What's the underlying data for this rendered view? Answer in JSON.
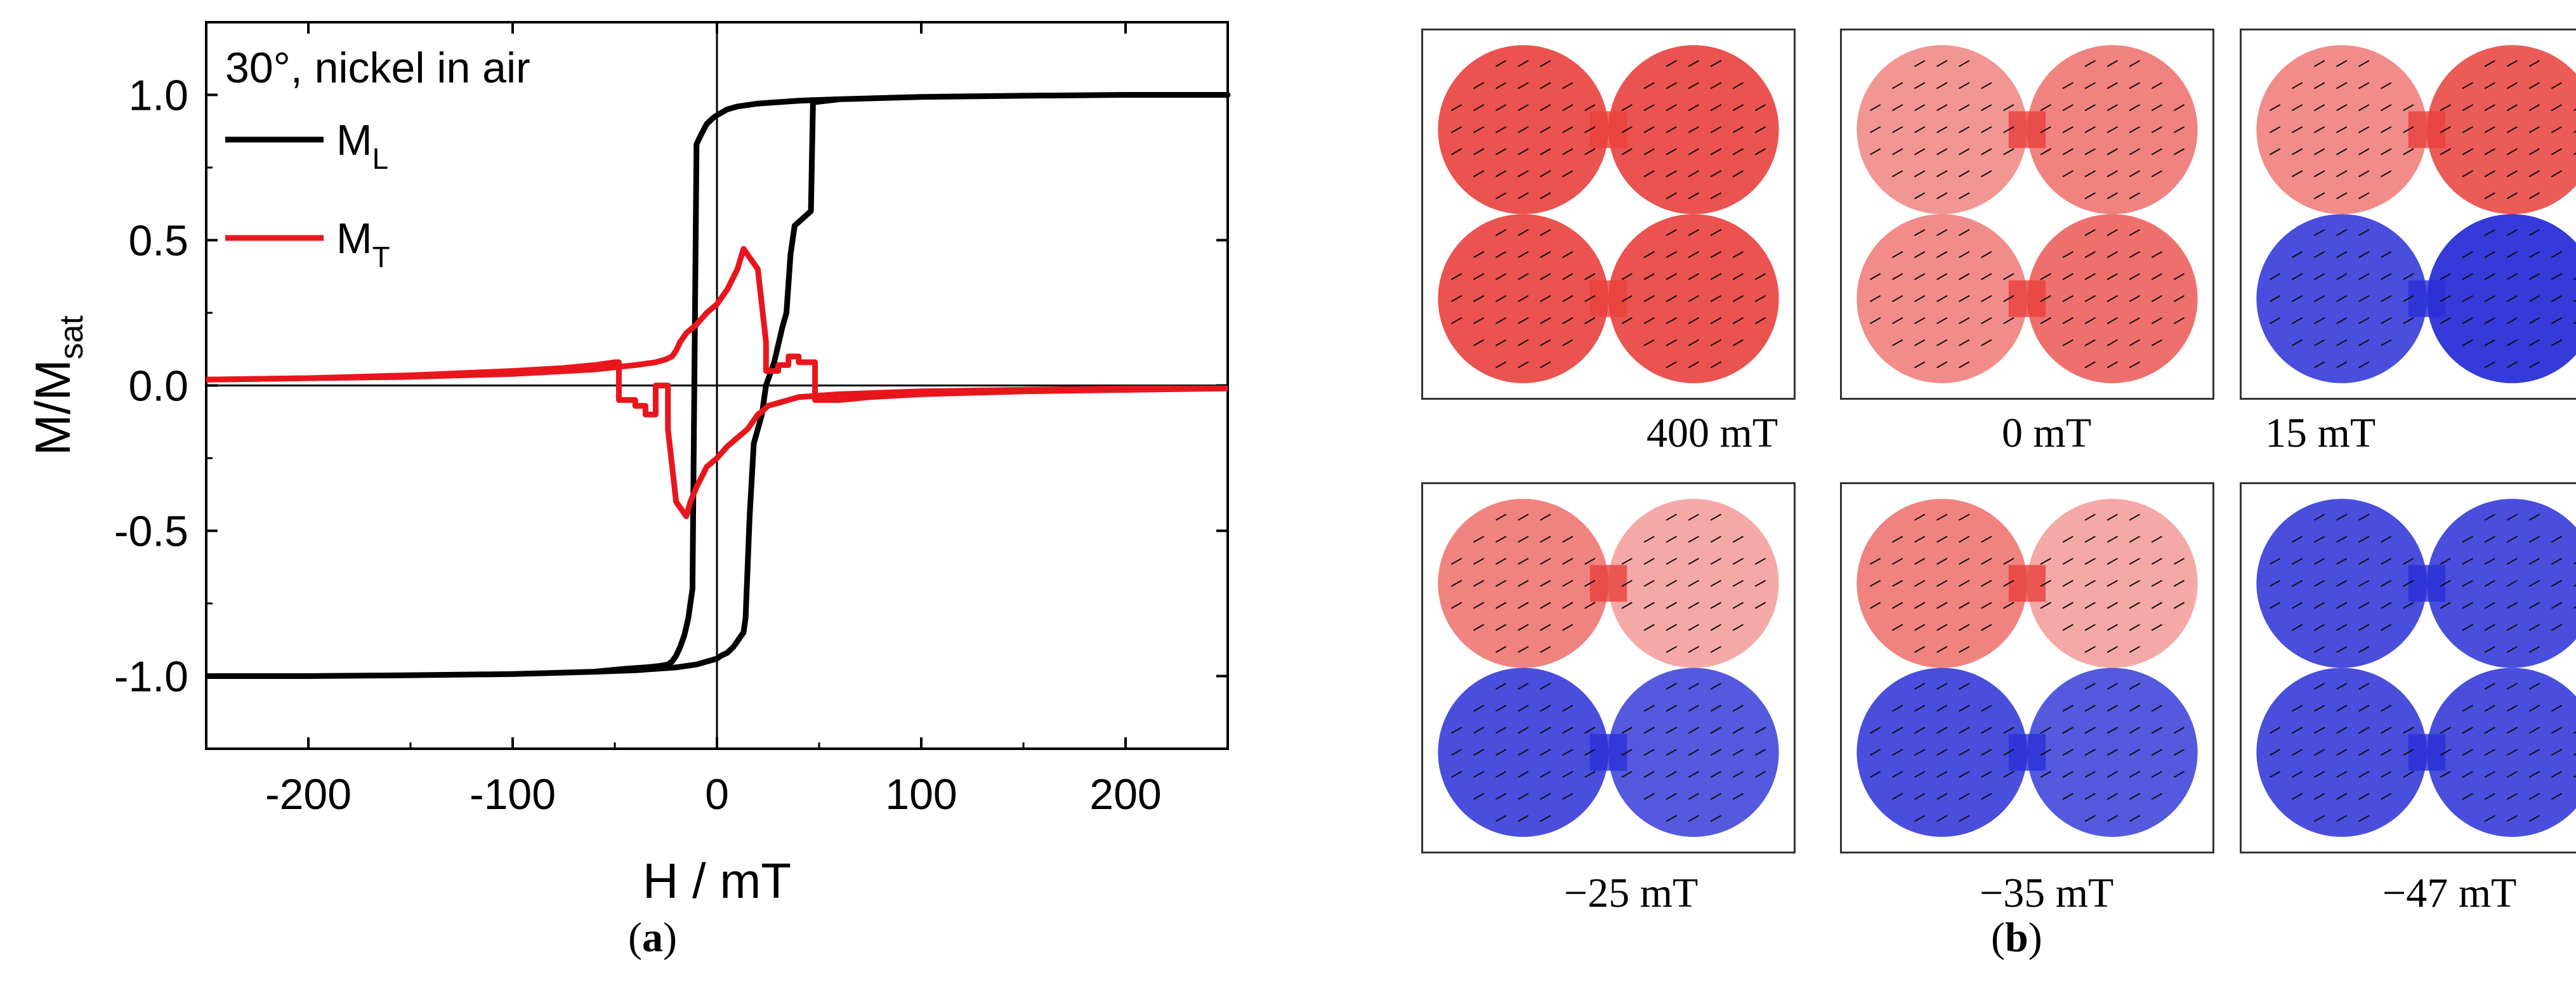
{
  "colors": {
    "ml_line": "#000000",
    "mt_line": "#e8161c",
    "red_domain": "#e8403c",
    "blue_domain": "#2a2fd6",
    "pale": "#f4eef0"
  },
  "panel_a": {
    "label_open": "(",
    "label_letter": "a",
    "label_close": ")"
  },
  "panel_b": {
    "label_open": "(",
    "label_letter": "b",
    "label_close": ")",
    "tiles": [
      {
        "field": "400 mT",
        "pattern": "all-red"
      },
      {
        "field": "0 mT",
        "pattern": "pale-red"
      },
      {
        "field": "15 mT",
        "pattern": "red-top-blue-bottom"
      },
      {
        "field": "−25 mT",
        "pattern": "red-top-blue-bottom-pale"
      },
      {
        "field": "−35 mT",
        "pattern": "red-top-blue-bottom-pale"
      },
      {
        "field": "−47 mT",
        "pattern": "all-blue"
      }
    ]
  },
  "chart_data": {
    "type": "line",
    "title": "30°, nickel in air",
    "xlabel": "H / mT",
    "ylabel_main": "M/M",
    "ylabel_sub": "sat",
    "xlim": [
      -250,
      250
    ],
    "ylim": [
      -1.25,
      1.25
    ],
    "xticks": [
      -200,
      -100,
      0,
      100,
      200
    ],
    "xtick_labels": [
      "-200",
      "-100",
      "0",
      "100",
      "200"
    ],
    "yticks": [
      -1.0,
      -0.5,
      0.0,
      0.5,
      1.0
    ],
    "ytick_labels": [
      "-1.0",
      "-0.5",
      "0.0",
      "0.5",
      "1.0"
    ],
    "legend_position": "top-left",
    "series": [
      {
        "name": "M_L",
        "legend_main": "M",
        "legend_sub": "L",
        "color": "#000000",
        "x": [
          -250,
          -200,
          -150,
          -100,
          -60,
          -45,
          -35,
          -28,
          -24,
          -22,
          -20,
          -18,
          -16,
          -14,
          -13,
          -12,
          -10,
          -8,
          -5,
          -2,
          0,
          5,
          10,
          20,
          40,
          60,
          100,
          150,
          200,
          250,
          250,
          200,
          150,
          100,
          60,
          48,
          47,
          46,
          38,
          36,
          34,
          32,
          28,
          24,
          22,
          20,
          18,
          16,
          14,
          13,
          12,
          10,
          8,
          5,
          2,
          0,
          -5,
          -10,
          -20,
          -40,
          -60,
          -100,
          -150,
          -200,
          -250
        ],
        "y": [
          -1.0,
          -1.0,
          -0.997,
          -0.993,
          -0.985,
          -0.975,
          -0.97,
          -0.965,
          -0.96,
          -0.95,
          -0.93,
          -0.9,
          -0.86,
          -0.8,
          -0.75,
          -0.7,
          0.83,
          0.86,
          0.9,
          0.92,
          0.93,
          0.95,
          0.96,
          0.97,
          0.98,
          0.985,
          0.993,
          0.997,
          1.0,
          1.0,
          1.0,
          1.0,
          0.997,
          0.993,
          0.985,
          0.975,
          0.97,
          0.6,
          0.55,
          0.45,
          0.25,
          0.2,
          0.08,
          0.0,
          -0.1,
          -0.15,
          -0.2,
          -0.45,
          -0.8,
          -0.85,
          -0.86,
          -0.88,
          -0.9,
          -0.92,
          -0.93,
          -0.94,
          -0.95,
          -0.96,
          -0.97,
          -0.98,
          -0.985,
          -0.993,
          -0.997,
          -1.0,
          -1.0
        ]
      },
      {
        "name": "M_T",
        "legend_main": "M",
        "legend_sub": "T",
        "color": "#e8161c",
        "x": [
          -250,
          -200,
          -150,
          -100,
          -75,
          -60,
          -50,
          -48,
          -48,
          -40,
          -40,
          -35,
          -35,
          -30,
          -30,
          -24,
          -24,
          -20,
          -18,
          -15,
          -13,
          -10,
          -5,
          0,
          5,
          10,
          15,
          18,
          20,
          22,
          25,
          30,
          40,
          60,
          100,
          150,
          200,
          250
        ],
        "y": [
          0.02,
          0.025,
          0.035,
          0.05,
          0.06,
          0.07,
          0.08,
          0.08,
          -0.05,
          -0.05,
          -0.07,
          -0.07,
          -0.1,
          -0.1,
          0.0,
          0.0,
          -0.15,
          -0.4,
          -0.42,
          -0.45,
          -0.4,
          -0.35,
          -0.28,
          -0.25,
          -0.21,
          -0.18,
          -0.15,
          -0.12,
          -0.1,
          -0.09,
          -0.07,
          -0.06,
          -0.04,
          -0.03,
          -0.02,
          -0.015,
          -0.01,
          -0.01
        ]
      },
      {
        "name": "M_T_return",
        "color": "#e8161c",
        "x": [
          250,
          200,
          150,
          100,
          75,
          60,
          48,
          48,
          40,
          40,
          35,
          35,
          30,
          30,
          24,
          24,
          20,
          18,
          15,
          13,
          10,
          5,
          0,
          -5,
          -10,
          -15,
          -18,
          -20,
          -22,
          -25,
          -30,
          -40,
          -60,
          -100,
          -150,
          -200,
          -250
        ],
        "y": [
          -0.01,
          -0.015,
          -0.02,
          -0.03,
          -0.04,
          -0.05,
          -0.05,
          0.08,
          0.08,
          0.1,
          0.1,
          0.07,
          0.07,
          0.05,
          0.05,
          0.15,
          0.4,
          0.42,
          0.45,
          0.47,
          0.4,
          0.33,
          0.28,
          0.25,
          0.21,
          0.18,
          0.15,
          0.12,
          0.1,
          0.09,
          0.08,
          0.07,
          0.055,
          0.04,
          0.03,
          0.025,
          0.02
        ]
      }
    ]
  }
}
